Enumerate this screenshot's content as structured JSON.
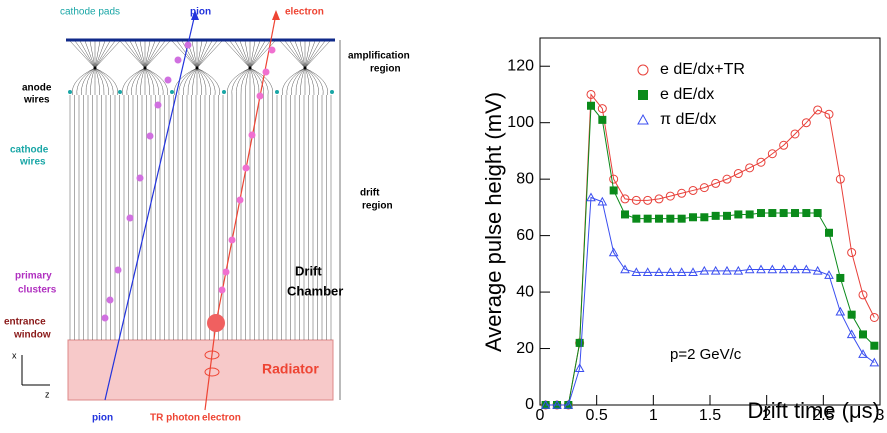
{
  "diagram": {
    "cathode_pads": "cathode pads",
    "pion_top": "pion",
    "electron_top": "electron",
    "amplification_region": [
      "amplification",
      "region"
    ],
    "anode_wires": [
      "anode",
      "wires"
    ],
    "cathode_wires": [
      "cathode",
      "wires"
    ],
    "drift_region": [
      "drift",
      "region"
    ],
    "primary_clusters": [
      "primary",
      "clusters"
    ],
    "drift_chamber": [
      "Drift",
      "Chamber"
    ],
    "entrance_window": [
      "entrance",
      "window"
    ],
    "radiator": "Radiator",
    "pion_bottom": "pion",
    "tr_photon": "TR photon",
    "electron_bottom": "electron",
    "axis_x": "x",
    "axis_z": "z"
  },
  "chart_data": {
    "type": "line",
    "x_label": "Drift time (μs)",
    "y_label": "Average pulse height (mV)",
    "annotation": "p=2 GeV/c",
    "x": [
      0.05,
      0.15,
      0.25,
      0.35,
      0.45,
      0.55,
      0.65,
      0.75,
      0.85,
      0.95,
      1.05,
      1.15,
      1.25,
      1.35,
      1.45,
      1.55,
      1.65,
      1.75,
      1.85,
      1.95,
      2.05,
      2.15,
      2.25,
      2.35,
      2.45,
      2.55,
      2.65,
      2.75,
      2.85,
      2.95
    ],
    "series": [
      {
        "name": "e dE/dx+TR",
        "color": "#e8403a",
        "marker": "open-circle",
        "values": [
          0,
          0,
          0,
          22,
          110,
          105,
          80,
          73,
          72.5,
          72.5,
          73,
          74,
          75,
          76,
          77,
          78.5,
          80,
          82,
          84,
          86,
          89,
          92,
          96,
          100,
          104.5,
          103,
          80,
          54,
          39,
          31
        ]
      },
      {
        "name": "e dE/dx",
        "color": "#0a8a1a",
        "marker": "filled-square",
        "values": [
          0,
          0,
          0,
          22,
          106,
          101,
          76,
          67.5,
          66,
          66,
          66,
          66,
          66,
          66.5,
          66.5,
          67,
          67,
          67.5,
          67.5,
          68,
          68,
          68,
          68,
          68,
          68,
          61,
          45,
          32,
          25,
          21
        ]
      },
      {
        "name": "π dE/dx",
        "color": "#3a4ef0",
        "marker": "open-triangle",
        "values": [
          0,
          0,
          0,
          13,
          73.5,
          72,
          54,
          48,
          47,
          47,
          47,
          47,
          47,
          47,
          47.5,
          47.5,
          47.5,
          47.5,
          48,
          48,
          48,
          48,
          48,
          48,
          47.5,
          46,
          33,
          25,
          18,
          15
        ]
      }
    ],
    "xlim": [
      0,
      3
    ],
    "xticks": [
      0,
      0.5,
      1,
      1.5,
      2,
      2.5,
      3
    ],
    "ylim": [
      0,
      130
    ],
    "yticks": [
      0,
      20,
      40,
      60,
      80,
      100,
      120
    ]
  }
}
